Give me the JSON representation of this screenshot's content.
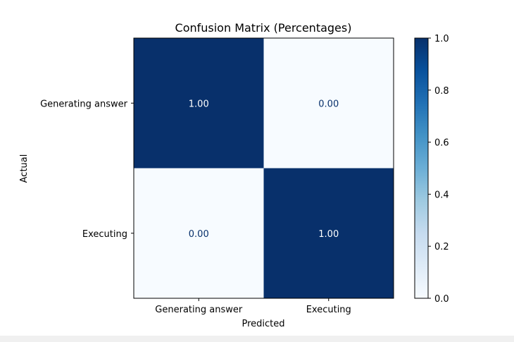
{
  "chart_data": {
    "type": "heatmap",
    "title": "Confusion Matrix (Percentages)",
    "xlabel": "Predicted",
    "ylabel": "Actual",
    "x_categories": [
      "Generating answer",
      "Executing"
    ],
    "y_categories": [
      "Generating answer",
      "Executing"
    ],
    "values": [
      [
        1.0,
        0.0
      ],
      [
        0.0,
        1.0
      ]
    ],
    "value_labels": [
      [
        "1.00",
        "0.00"
      ],
      [
        "0.00",
        "1.00"
      ]
    ],
    "colormap": "Blues",
    "colorbar": {
      "range": [
        0.0,
        1.0
      ],
      "ticks": [
        "0.0",
        "0.2",
        "0.4",
        "0.6",
        "0.8",
        "1.0"
      ]
    },
    "grid": false
  }
}
